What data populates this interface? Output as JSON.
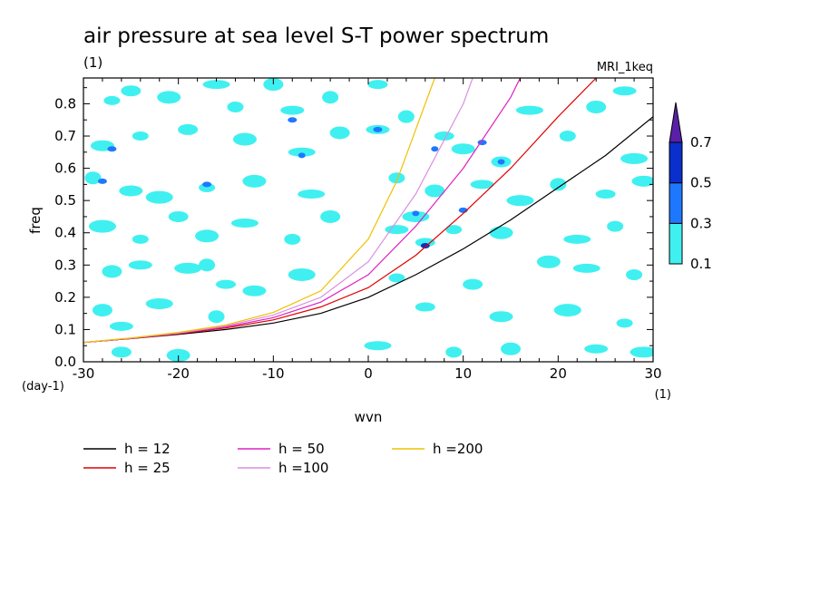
{
  "chart_data": {
    "type": "contour",
    "title": "air pressure at sea level S-T power spectrum",
    "subtitle_left": "(1)",
    "subtitle_right": "MRI_1keq",
    "xlabel": "wvn",
    "ylabel": "freq",
    "x_unit_label": "(1)",
    "y_unit_label": "(day-1)",
    "xlim": [
      -30,
      30
    ],
    "ylim": [
      0,
      0.88
    ],
    "x_ticks": [
      -30,
      -20,
      -10,
      0,
      10,
      20,
      30
    ],
    "x_tick_labels": [
      "-30",
      "-20",
      "-10",
      "0",
      "10",
      "20",
      "30"
    ],
    "y_ticks": [
      0,
      0.1,
      0.2,
      0.3,
      0.4,
      0.5,
      0.6,
      0.7,
      0.8
    ],
    "y_tick_labels": [
      "0.0",
      "0.1",
      "0.2",
      "0.3",
      "0.4",
      "0.5",
      "0.6",
      "0.7",
      "0.8"
    ],
    "colorbar": {
      "levels": [
        0.1,
        0.3,
        0.5,
        0.7
      ],
      "level_labels": [
        "0.1",
        "0.3",
        "0.5",
        "0.7"
      ],
      "colors": [
        "#40f0f0",
        "#1e78ff",
        "#0a2fcc",
        "#5a1fa8"
      ]
    },
    "series": [
      {
        "name": "h = 12",
        "color": "#000000",
        "h": 12,
        "x": [
          -30,
          -25,
          -20,
          -15,
          -10,
          -5,
          0,
          5,
          10,
          15,
          20,
          25,
          30
        ],
        "y": [
          0.06,
          0.072,
          0.085,
          0.1,
          0.12,
          0.15,
          0.2,
          0.27,
          0.35,
          0.44,
          0.54,
          0.64,
          0.76
        ]
      },
      {
        "name": "h = 25",
        "color": "#e00000",
        "h": 25,
        "x": [
          -30,
          -25,
          -20,
          -15,
          -10,
          -5,
          0,
          5,
          10,
          15,
          20,
          24
        ],
        "y": [
          0.06,
          0.072,
          0.087,
          0.105,
          0.13,
          0.17,
          0.23,
          0.33,
          0.46,
          0.6,
          0.76,
          0.88
        ]
      },
      {
        "name": "h = 50",
        "color": "#e020c0",
        "h": 50,
        "x": [
          -30,
          -25,
          -20,
          -15,
          -10,
          -5,
          0,
          5,
          10,
          15,
          16
        ],
        "y": [
          0.06,
          0.073,
          0.088,
          0.108,
          0.137,
          0.185,
          0.27,
          0.42,
          0.6,
          0.82,
          0.88
        ]
      },
      {
        "name": "h =100",
        "color": "#d890e0",
        "h": 100,
        "x": [
          -30,
          -25,
          -20,
          -15,
          -10,
          -5,
          0,
          5,
          10,
          11
        ],
        "y": [
          0.06,
          0.073,
          0.089,
          0.111,
          0.145,
          0.2,
          0.31,
          0.52,
          0.8,
          0.88
        ]
      },
      {
        "name": "h =200",
        "color": "#f0c000",
        "h": 200,
        "x": [
          -30,
          -25,
          -20,
          -15,
          -10,
          -5,
          0,
          3,
          5,
          7
        ],
        "y": [
          0.06,
          0.074,
          0.091,
          0.114,
          0.153,
          0.22,
          0.38,
          0.56,
          0.72,
          0.88
        ]
      }
    ],
    "contour_patches": [
      {
        "x": -27,
        "y": 0.81,
        "level": 0.1
      },
      {
        "x": -25,
        "y": 0.84,
        "level": 0.1
      },
      {
        "x": -21,
        "y": 0.82,
        "level": 0.1
      },
      {
        "x": -16,
        "y": 0.86,
        "level": 0.1
      },
      {
        "x": -14,
        "y": 0.79,
        "level": 0.1
      },
      {
        "x": -10,
        "y": 0.86,
        "level": 0.1
      },
      {
        "x": -8,
        "y": 0.78,
        "level": 0.1
      },
      {
        "x": -8,
        "y": 0.75,
        "level": 0.3
      },
      {
        "x": -4,
        "y": 0.82,
        "level": 0.1
      },
      {
        "x": 1,
        "y": 0.86,
        "level": 0.1
      },
      {
        "x": -28,
        "y": 0.67,
        "level": 0.1
      },
      {
        "x": -27,
        "y": 0.66,
        "level": 0.3
      },
      {
        "x": -24,
        "y": 0.7,
        "level": 0.1
      },
      {
        "x": -19,
        "y": 0.72,
        "level": 0.1
      },
      {
        "x": -13,
        "y": 0.69,
        "level": 0.1
      },
      {
        "x": -7,
        "y": 0.65,
        "level": 0.1
      },
      {
        "x": -7,
        "y": 0.64,
        "level": 0.3
      },
      {
        "x": -3,
        "y": 0.71,
        "level": 0.1
      },
      {
        "x": 1,
        "y": 0.72,
        "level": 0.1
      },
      {
        "x": 1,
        "y": 0.72,
        "level": 0.3
      },
      {
        "x": 4,
        "y": 0.76,
        "level": 0.1
      },
      {
        "x": 8,
        "y": 0.7,
        "level": 0.1
      },
      {
        "x": 10,
        "y": 0.66,
        "level": 0.1
      },
      {
        "x": 12,
        "y": 0.68,
        "level": 0.3
      },
      {
        "x": 7,
        "y": 0.66,
        "level": 0.3
      },
      {
        "x": 14,
        "y": 0.62,
        "level": 0.1
      },
      {
        "x": 14,
        "y": 0.62,
        "level": 0.3
      },
      {
        "x": 17,
        "y": 0.78,
        "level": 0.1
      },
      {
        "x": 21,
        "y": 0.7,
        "level": 0.1
      },
      {
        "x": 24,
        "y": 0.79,
        "level": 0.1
      },
      {
        "x": 27,
        "y": 0.84,
        "level": 0.1
      },
      {
        "x": 28,
        "y": 0.63,
        "level": 0.1
      },
      {
        "x": -29,
        "y": 0.57,
        "level": 0.1
      },
      {
        "x": -28,
        "y": 0.56,
        "level": 0.3
      },
      {
        "x": -25,
        "y": 0.53,
        "level": 0.1
      },
      {
        "x": -22,
        "y": 0.51,
        "level": 0.1
      },
      {
        "x": -17,
        "y": 0.54,
        "level": 0.1
      },
      {
        "x": -17,
        "y": 0.55,
        "level": 0.3
      },
      {
        "x": -12,
        "y": 0.56,
        "level": 0.1
      },
      {
        "x": -6,
        "y": 0.52,
        "level": 0.1
      },
      {
        "x": 3,
        "y": 0.57,
        "level": 0.1
      },
      {
        "x": 7,
        "y": 0.53,
        "level": 0.1
      },
      {
        "x": 12,
        "y": 0.55,
        "level": 0.1
      },
      {
        "x": 16,
        "y": 0.5,
        "level": 0.1
      },
      {
        "x": 20,
        "y": 0.55,
        "level": 0.1
      },
      {
        "x": 25,
        "y": 0.52,
        "level": 0.1
      },
      {
        "x": 29,
        "y": 0.56,
        "level": 0.1
      },
      {
        "x": -28,
        "y": 0.42,
        "level": 0.1
      },
      {
        "x": -24,
        "y": 0.38,
        "level": 0.1
      },
      {
        "x": -20,
        "y": 0.45,
        "level": 0.1
      },
      {
        "x": -17,
        "y": 0.39,
        "level": 0.1
      },
      {
        "x": -13,
        "y": 0.43,
        "level": 0.1
      },
      {
        "x": -8,
        "y": 0.38,
        "level": 0.1
      },
      {
        "x": -4,
        "y": 0.45,
        "level": 0.1
      },
      {
        "x": 3,
        "y": 0.41,
        "level": 0.1
      },
      {
        "x": 5,
        "y": 0.45,
        "level": 0.1
      },
      {
        "x": 5,
        "y": 0.46,
        "level": 0.3
      },
      {
        "x": 6,
        "y": 0.37,
        "level": 0.1
      },
      {
        "x": 6,
        "y": 0.36,
        "level": 0.3
      },
      {
        "x": 6,
        "y": 0.36,
        "level": 0.5
      },
      {
        "x": 9,
        "y": 0.41,
        "level": 0.1
      },
      {
        "x": 10,
        "y": 0.47,
        "level": 0.3
      },
      {
        "x": 14,
        "y": 0.4,
        "level": 0.1
      },
      {
        "x": 22,
        "y": 0.38,
        "level": 0.1
      },
      {
        "x": 26,
        "y": 0.42,
        "level": 0.1
      },
      {
        "x": -27,
        "y": 0.28,
        "level": 0.1
      },
      {
        "x": -24,
        "y": 0.3,
        "level": 0.1
      },
      {
        "x": -19,
        "y": 0.29,
        "level": 0.1
      },
      {
        "x": -17,
        "y": 0.3,
        "level": 0.1
      },
      {
        "x": -15,
        "y": 0.24,
        "level": 0.1
      },
      {
        "x": -12,
        "y": 0.22,
        "level": 0.1
      },
      {
        "x": -7,
        "y": 0.27,
        "level": 0.1
      },
      {
        "x": 3,
        "y": 0.26,
        "level": 0.1
      },
      {
        "x": 11,
        "y": 0.24,
        "level": 0.1
      },
      {
        "x": 19,
        "y": 0.31,
        "level": 0.1
      },
      {
        "x": 23,
        "y": 0.29,
        "level": 0.1
      },
      {
        "x": 28,
        "y": 0.27,
        "level": 0.1
      },
      {
        "x": -28,
        "y": 0.16,
        "level": 0.1
      },
      {
        "x": -26,
        "y": 0.11,
        "level": 0.1
      },
      {
        "x": -22,
        "y": 0.18,
        "level": 0.1
      },
      {
        "x": -16,
        "y": 0.14,
        "level": 0.1
      },
      {
        "x": 6,
        "y": 0.17,
        "level": 0.1
      },
      {
        "x": 14,
        "y": 0.14,
        "level": 0.1
      },
      {
        "x": 21,
        "y": 0.16,
        "level": 0.1
      },
      {
        "x": 27,
        "y": 0.12,
        "level": 0.1
      },
      {
        "x": -26,
        "y": 0.03,
        "level": 0.1
      },
      {
        "x": -20,
        "y": 0.02,
        "level": 0.1
      },
      {
        "x": 1,
        "y": 0.05,
        "level": 0.1
      },
      {
        "x": 9,
        "y": 0.03,
        "level": 0.1
      },
      {
        "x": 15,
        "y": 0.04,
        "level": 0.1
      },
      {
        "x": 24,
        "y": 0.04,
        "level": 0.1
      },
      {
        "x": 29,
        "y": 0.03,
        "level": 0.1
      }
    ]
  }
}
